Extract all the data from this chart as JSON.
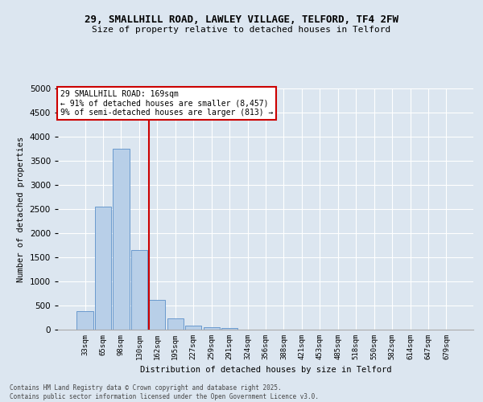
{
  "title1": "29, SMALLHILL ROAD, LAWLEY VILLAGE, TELFORD, TF4 2FW",
  "title2": "Size of property relative to detached houses in Telford",
  "xlabel": "Distribution of detached houses by size in Telford",
  "ylabel": "Number of detached properties",
  "categories": [
    "33sqm",
    "65sqm",
    "98sqm",
    "130sqm",
    "162sqm",
    "195sqm",
    "227sqm",
    "259sqm",
    "291sqm",
    "324sqm",
    "356sqm",
    "388sqm",
    "421sqm",
    "453sqm",
    "485sqm",
    "518sqm",
    "550sqm",
    "582sqm",
    "614sqm",
    "647sqm",
    "679sqm"
  ],
  "values": [
    380,
    2550,
    3750,
    1650,
    620,
    230,
    90,
    50,
    40,
    0,
    0,
    0,
    0,
    0,
    0,
    0,
    0,
    0,
    0,
    0,
    0
  ],
  "bar_color": "#b8cfe8",
  "bar_edge_color": "#5b8fc9",
  "vline_index": 3.55,
  "property_label": "29 SMALLHILL ROAD: 169sqm",
  "annotation_line1": "← 91% of detached houses are smaller (8,457)",
  "annotation_line2": "9% of semi-detached houses are larger (813) →",
  "annotation_box_color": "#ffffff",
  "annotation_box_edge": "#cc0000",
  "vline_color": "#cc0000",
  "ylim": [
    0,
    5000
  ],
  "yticks": [
    0,
    500,
    1000,
    1500,
    2000,
    2500,
    3000,
    3500,
    4000,
    4500,
    5000
  ],
  "bg_color": "#dce6f0",
  "plot_bg_color": "#dce6f0",
  "footer1": "Contains HM Land Registry data © Crown copyright and database right 2025.",
  "footer2": "Contains public sector information licensed under the Open Government Licence v3.0."
}
